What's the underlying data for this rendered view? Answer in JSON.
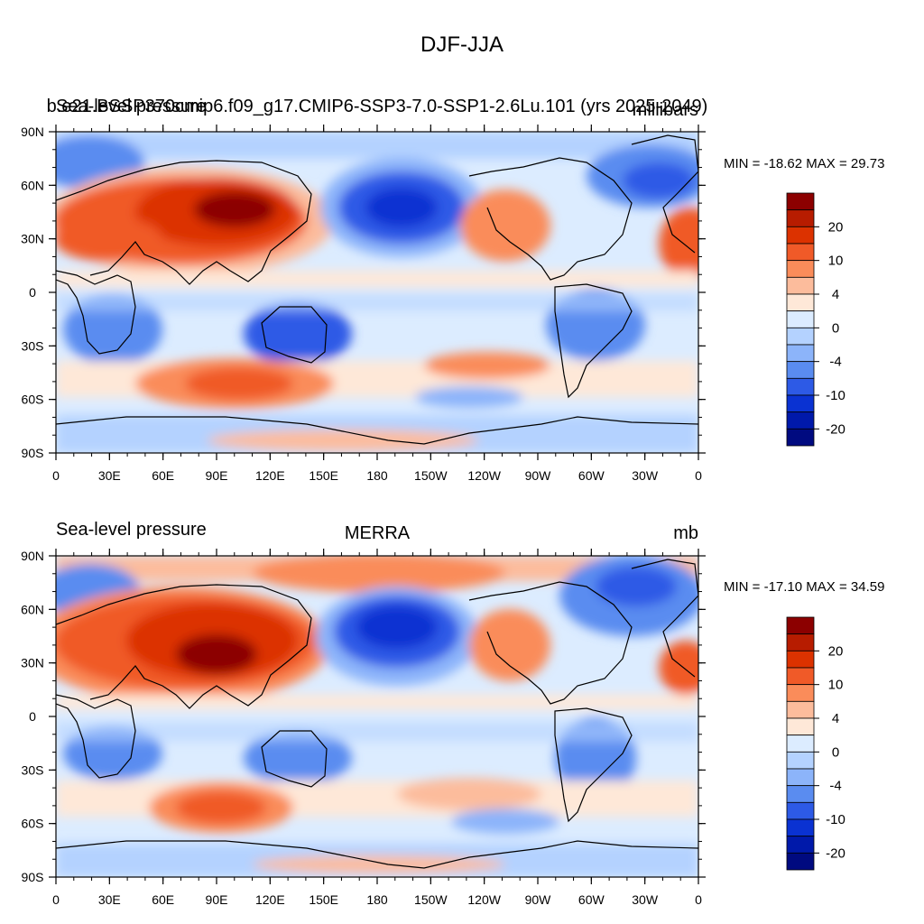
{
  "figure": {
    "title": "DJF-JJA"
  },
  "panels": [
    {
      "left_title": "Sea-level pressure",
      "center_title": "b.e21.BSSP370cmip6.f09_g17.CMIP6-SSP3-7.0-SSP1-2.6Lu.101 (yrs 2025-2049)",
      "right_title": "millibars",
      "stats": "MIN = -18.62 MAX =  29.73"
    },
    {
      "left_title": "Sea-level pressure",
      "center_title": "MERRA",
      "right_title": "mb",
      "stats": "MIN = -17.10 MAX =  34.59"
    }
  ],
  "axes": {
    "lat_ticks": [
      "90N",
      "60N",
      "30N",
      "0",
      "30S",
      "60S",
      "90S"
    ],
    "lon_ticks": [
      "0",
      "30E",
      "60E",
      "90E",
      "120E",
      "150E",
      "180",
      "150W",
      "120W",
      "90W",
      "60W",
      "30W",
      "0"
    ]
  },
  "colorbar": {
    "labels": [
      "20",
      "10",
      "4",
      "0",
      "-4",
      "-10",
      "-20"
    ],
    "colors": [
      "#8c0000",
      "#b71c00",
      "#dc3200",
      "#f05a28",
      "#fa8c5a",
      "#fcbc9c",
      "#fee8d8",
      "#dcecff",
      "#b4d2ff",
      "#8cb4fa",
      "#5a8cf0",
      "#2d5ae6",
      "#0a32d2",
      "#0019aa",
      "#000a80"
    ]
  },
  "map_colors": {
    "ocean_base": "#dcecff",
    "coast": "#000000"
  }
}
